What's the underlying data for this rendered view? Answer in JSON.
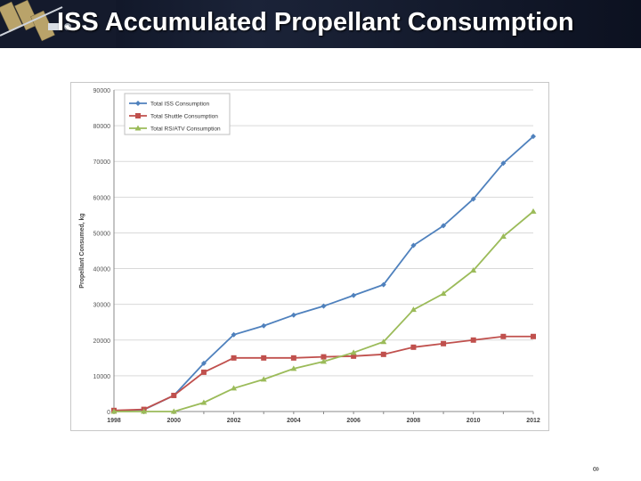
{
  "slide": {
    "title": "ISS Accumulated Propellant Consumption",
    "page_number": "8"
  },
  "colors": {
    "banner": "#0c1120",
    "title_text": "#ffffff"
  },
  "chart_data": {
    "type": "line",
    "title": "",
    "xlabel": "",
    "ylabel": "Propellant Consumed, kg",
    "x": [
      1998,
      1999,
      2000,
      2001,
      2002,
      2003,
      2004,
      2005,
      2006,
      2007,
      2008,
      2009,
      2010,
      2011,
      2012
    ],
    "x_tick_labels": [
      "1998",
      "2000",
      "2002",
      "2004",
      "2006",
      "2008",
      "2010",
      "2012"
    ],
    "xlim": [
      1998,
      2012
    ],
    "ylim": [
      0,
      90000
    ],
    "y_tick_labels": [
      "0",
      "10000",
      "20000",
      "30000",
      "40000",
      "50000",
      "60000",
      "70000",
      "80000",
      "90000"
    ],
    "grid": "horizontal",
    "legend_position": "top-left",
    "series": [
      {
        "name": "Total ISS Consumption",
        "color": "#4f81bd",
        "marker": "diamond",
        "values": [
          200,
          500,
          4500,
          13500,
          21500,
          24000,
          27000,
          29500,
          32500,
          35500,
          46500,
          52000,
          59500,
          69500,
          77000
        ]
      },
      {
        "name": "Total Shuttle Consumption",
        "color": "#c0504d",
        "marker": "square",
        "values": [
          300,
          600,
          4500,
          11000,
          15000,
          15000,
          15000,
          15300,
          15500,
          16000,
          18000,
          19000,
          20000,
          21000,
          21000
        ]
      },
      {
        "name": "Total RS/ATV Consumption",
        "color": "#9bbb59",
        "marker": "triangle",
        "values": [
          0,
          0,
          0,
          2500,
          6500,
          9000,
          12000,
          14000,
          16500,
          19500,
          28500,
          33000,
          39500,
          49000,
          56000
        ]
      }
    ]
  }
}
